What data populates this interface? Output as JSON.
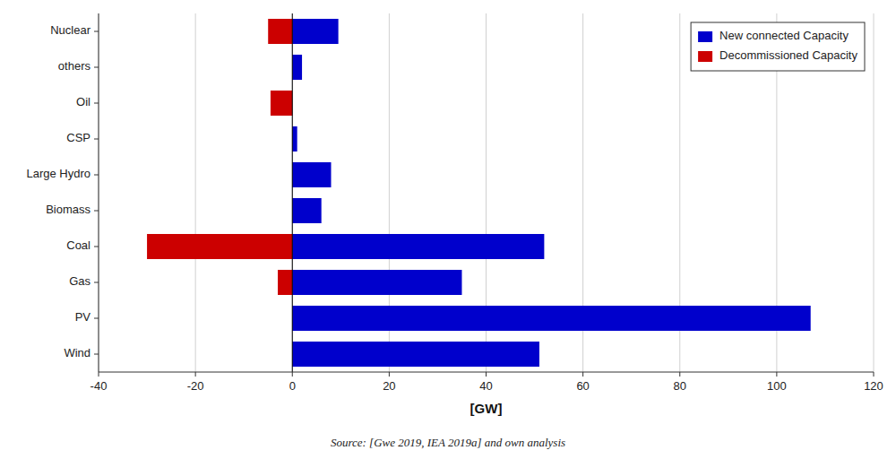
{
  "chart_data": {
    "type": "bar",
    "orientation": "horizontal",
    "stacked": true,
    "categories": [
      "Wind",
      "PV",
      "Gas",
      "Coal",
      "Biomass",
      "Large Hydro",
      "CSP",
      "Oil",
      "others",
      "Nuclear"
    ],
    "series": [
      {
        "name": "New connected Capacity",
        "color": "#0000cc",
        "values": [
          51.0,
          107.0,
          35.0,
          52.0,
          6.0,
          8.0,
          1.0,
          0.0,
          2.0,
          9.5
        ]
      },
      {
        "name": "Decommissioned Capacity",
        "color": "#cc0000",
        "values": [
          0.0,
          0.0,
          -3.0,
          -30.0,
          0.0,
          0.0,
          0.0,
          -4.5,
          0.0,
          -5.0
        ]
      }
    ],
    "xlabel": "[GW]",
    "xlim": [
      -40,
      120
    ],
    "xticks": [
      -40,
      -20,
      0,
      20,
      40,
      60,
      80,
      100,
      120
    ],
    "grid": true,
    "legend": "upper right",
    "annotations": [
      "Source: [Gwe 2019, IEA 2019a] and own analysis"
    ]
  }
}
